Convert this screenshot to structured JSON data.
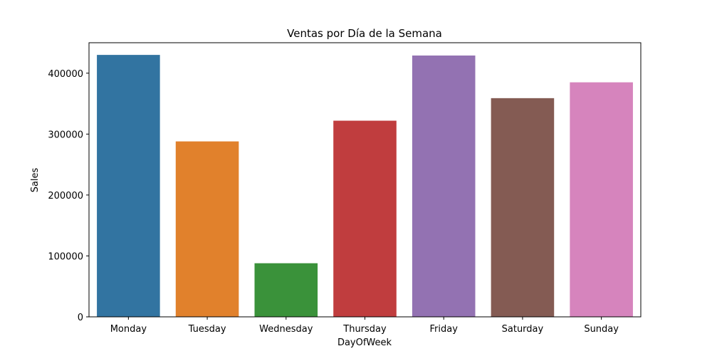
{
  "chart_data": {
    "type": "bar",
    "title": "Ventas por Día de la Semana",
    "xlabel": "DayOfWeek",
    "ylabel": "Sales",
    "categories": [
      "Monday",
      "Tuesday",
      "Wednesday",
      "Thursday",
      "Friday",
      "Saturday",
      "Sunday"
    ],
    "values": [
      430000,
      288000,
      88000,
      322000,
      429000,
      359000,
      385000
    ],
    "colors": [
      "#3274a1",
      "#e1812c",
      "#3a923a",
      "#c03d3e",
      "#9372b2",
      "#845b53",
      "#d684bd"
    ],
    "ylim": [
      0,
      450000
    ],
    "yticks": [
      0,
      100000,
      200000,
      300000,
      400000
    ],
    "ytick_labels": [
      "0",
      "100000",
      "200000",
      "300000",
      "400000"
    ],
    "grid": false,
    "legend": "none"
  }
}
